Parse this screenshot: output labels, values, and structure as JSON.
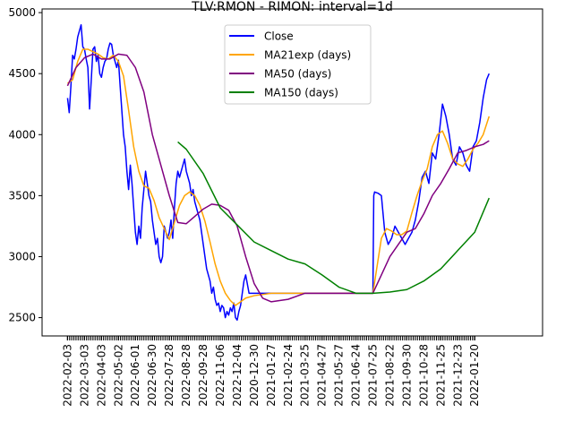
{
  "chart_data": {
    "type": "line",
    "title": "TLV:RMON - RIMON: interval=1d",
    "xlabel": "",
    "ylabel": "",
    "ylim": [
      2350,
      5030
    ],
    "yticks": [
      2500,
      3000,
      3500,
      4000,
      4500,
      5000
    ],
    "xlim": [
      -1.5,
      28
    ],
    "xticks": [
      "2022-02-03",
      "2022-03-03",
      "2022-04-03",
      "2022-05-02",
      "2022-06-01",
      "2022-06-30",
      "2022-07-28",
      "2022-08-28",
      "2022-09-28",
      "2022-11-06",
      "2022-12-04",
      "2020-12-30",
      "2021-01-27",
      "2021-02-24",
      "2021-03-25",
      "2021-04-27",
      "2021-05-27",
      "2021-06-24",
      "2021-07-25",
      "2021-08-22",
      "2021-09-30",
      "2021-10-28",
      "2021-11-25",
      "2021-12-23",
      "2022-01-20"
    ],
    "legend_position": "upper center",
    "grid": false,
    "colors": {
      "Close": "#0000ff",
      "MA21exp (days)": "#ffa500",
      "MA50 (days)": "#800080",
      "MA150 (days)": "#008000"
    },
    "series": [
      {
        "name": "Close",
        "x": [
          0,
          0.1,
          0.2,
          0.3,
          0.4,
          0.5,
          0.6,
          0.7,
          0.8,
          0.9,
          1,
          1.1,
          1.2,
          1.3,
          1.4,
          1.5,
          1.6,
          1.7,
          1.8,
          1.9,
          2,
          2.1,
          2.2,
          2.3,
          2.4,
          2.5,
          2.6,
          2.7,
          2.8,
          2.9,
          3,
          3.1,
          3.2,
          3.3,
          3.4,
          3.5,
          3.6,
          3.7,
          3.8,
          3.9,
          4,
          4.1,
          4.2,
          4.3,
          4.4,
          4.5,
          4.6,
          4.7,
          4.8,
          4.9,
          5,
          5.1,
          5.2,
          5.3,
          5.4,
          5.5,
          5.6,
          5.7,
          5.8,
          5.9,
          6,
          6.1,
          6.2,
          6.3,
          6.4,
          6.5,
          6.6,
          6.7,
          6.8,
          6.9,
          7,
          7.1,
          7.2,
          7.3,
          7.4,
          7.5,
          7.6,
          7.7,
          7.8,
          7.9,
          8,
          8.1,
          8.2,
          8.3,
          8.4,
          8.5,
          8.6,
          8.7,
          8.8,
          8.9,
          9,
          9.1,
          9.2,
          9.3,
          9.4,
          9.5,
          9.6,
          9.7,
          9.8,
          9.9,
          10,
          10.1,
          10.2,
          10.3,
          10.4,
          10.5,
          10.7,
          11,
          12,
          13,
          14,
          15,
          16,
          17,
          18,
          18.05,
          18.1,
          18.3,
          18.5,
          18.7,
          18.9,
          19.1,
          19.3,
          19.5,
          19.7,
          19.9,
          20.1,
          20.3,
          20.5,
          20.7,
          20.9,
          21.1,
          21.3,
          21.5,
          21.7,
          21.9,
          22.1,
          22.3,
          22.5,
          22.7,
          22.9,
          23.1,
          23.3,
          23.5,
          23.7,
          23.9,
          24.1,
          24.3,
          24.5,
          24.7,
          24.85
        ],
        "values": [
          4300,
          4180,
          4400,
          4650,
          4620,
          4700,
          4800,
          4850,
          4900,
          4720,
          4700,
          4620,
          4550,
          4210,
          4450,
          4700,
          4720,
          4600,
          4650,
          4500,
          4470,
          4550,
          4600,
          4620,
          4700,
          4750,
          4740,
          4650,
          4600,
          4550,
          4610,
          4400,
          4200,
          4000,
          3900,
          3700,
          3550,
          3750,
          3600,
          3400,
          3200,
          3100,
          3250,
          3150,
          3400,
          3550,
          3700,
          3600,
          3500,
          3450,
          3300,
          3200,
          3100,
          3150,
          3000,
          2950,
          3000,
          3250,
          3200,
          3150,
          3200,
          3300,
          3150,
          3400,
          3600,
          3700,
          3650,
          3700,
          3750,
          3800,
          3700,
          3650,
          3600,
          3500,
          3550,
          3450,
          3400,
          3350,
          3300,
          3200,
          3100,
          3000,
          2900,
          2850,
          2800,
          2700,
          2750,
          2650,
          2600,
          2620,
          2550,
          2600,
          2580,
          2500,
          2550,
          2520,
          2580,
          2550,
          2620,
          2500,
          2480,
          2550,
          2600,
          2700,
          2800,
          2850,
          2700,
          2700,
          2700,
          2700,
          2700,
          2700,
          2700,
          2700,
          2700,
          3500,
          3530,
          3520,
          3500,
          3200,
          3100,
          3150,
          3250,
          3200,
          3150,
          3100,
          3150,
          3200,
          3300,
          3450,
          3650,
          3700,
          3600,
          3850,
          3800,
          4000,
          4250,
          4150,
          4000,
          3800,
          3750,
          3900,
          3850,
          3750,
          3700,
          3900,
          3950,
          4100,
          4300,
          4450,
          4500
        ]
      },
      {
        "name": "MA21exp (days)",
        "x": [
          0,
          0.3,
          0.6,
          0.9,
          1.2,
          1.5,
          1.8,
          2.1,
          2.4,
          2.7,
          3,
          3.3,
          3.6,
          3.9,
          4.2,
          4.5,
          4.8,
          5.1,
          5.4,
          5.7,
          6,
          6.3,
          6.6,
          6.9,
          7.2,
          7.5,
          7.8,
          8.1,
          8.4,
          8.7,
          9,
          9.3,
          9.6,
          9.9,
          10.2,
          10.5,
          11,
          12,
          13,
          14,
          15,
          16,
          17,
          18,
          18.2,
          18.5,
          18.8,
          19.1,
          19.4,
          19.7,
          20,
          20.3,
          20.6,
          20.9,
          21.2,
          21.5,
          21.8,
          22.1,
          22.4,
          22.7,
          23,
          23.3,
          23.6,
          23.9,
          24.2,
          24.5,
          24.85
        ],
        "values": [
          4420,
          4450,
          4600,
          4700,
          4700,
          4680,
          4660,
          4630,
          4620,
          4650,
          4600,
          4480,
          4200,
          3900,
          3700,
          3580,
          3560,
          3460,
          3320,
          3230,
          3140,
          3280,
          3420,
          3500,
          3530,
          3500,
          3420,
          3290,
          3120,
          2940,
          2800,
          2700,
          2640,
          2600,
          2630,
          2660,
          2680,
          2700,
          2700,
          2700,
          2700,
          2700,
          2700,
          2700,
          2880,
          3150,
          3230,
          3210,
          3180,
          3180,
          3210,
          3360,
          3500,
          3620,
          3720,
          3900,
          4000,
          4030,
          3930,
          3800,
          3760,
          3740,
          3800,
          3880,
          3930,
          4000,
          4150
        ]
      },
      {
        "name": "MA50 (days)",
        "x": [
          0,
          0.5,
          1,
          1.5,
          2,
          2.5,
          3,
          3.5,
          4,
          4.5,
          5,
          5.5,
          6,
          6.5,
          7,
          7.5,
          8,
          8.5,
          9,
          9.5,
          10,
          10.5,
          11,
          11.5,
          12,
          13,
          14,
          15,
          16,
          17,
          18,
          18.5,
          19,
          19.5,
          20,
          20.5,
          21,
          21.5,
          22,
          22.5,
          23,
          23.5,
          24,
          24.5,
          24.85
        ],
        "values": [
          4400,
          4550,
          4630,
          4660,
          4620,
          4620,
          4660,
          4650,
          4550,
          4350,
          4000,
          3750,
          3500,
          3280,
          3270,
          3330,
          3390,
          3430,
          3420,
          3380,
          3250,
          3000,
          2780,
          2660,
          2630,
          2650,
          2700,
          2700,
          2700,
          2700,
          2700,
          2850,
          3000,
          3100,
          3200,
          3230,
          3350,
          3500,
          3600,
          3720,
          3850,
          3870,
          3900,
          3920,
          3950
        ]
      },
      {
        "name": "MA150 (days)",
        "x": [
          6.5,
          7,
          8,
          9,
          10,
          11,
          12,
          13,
          14,
          15,
          16,
          17,
          18,
          19,
          20,
          21,
          22,
          23,
          24,
          24.85
        ],
        "values": [
          3940,
          3880,
          3680,
          3400,
          3260,
          3120,
          3050,
          2980,
          2940,
          2850,
          2750,
          2700,
          2700,
          2710,
          2730,
          2800,
          2900,
          3050,
          3200,
          3480
        ]
      }
    ]
  }
}
